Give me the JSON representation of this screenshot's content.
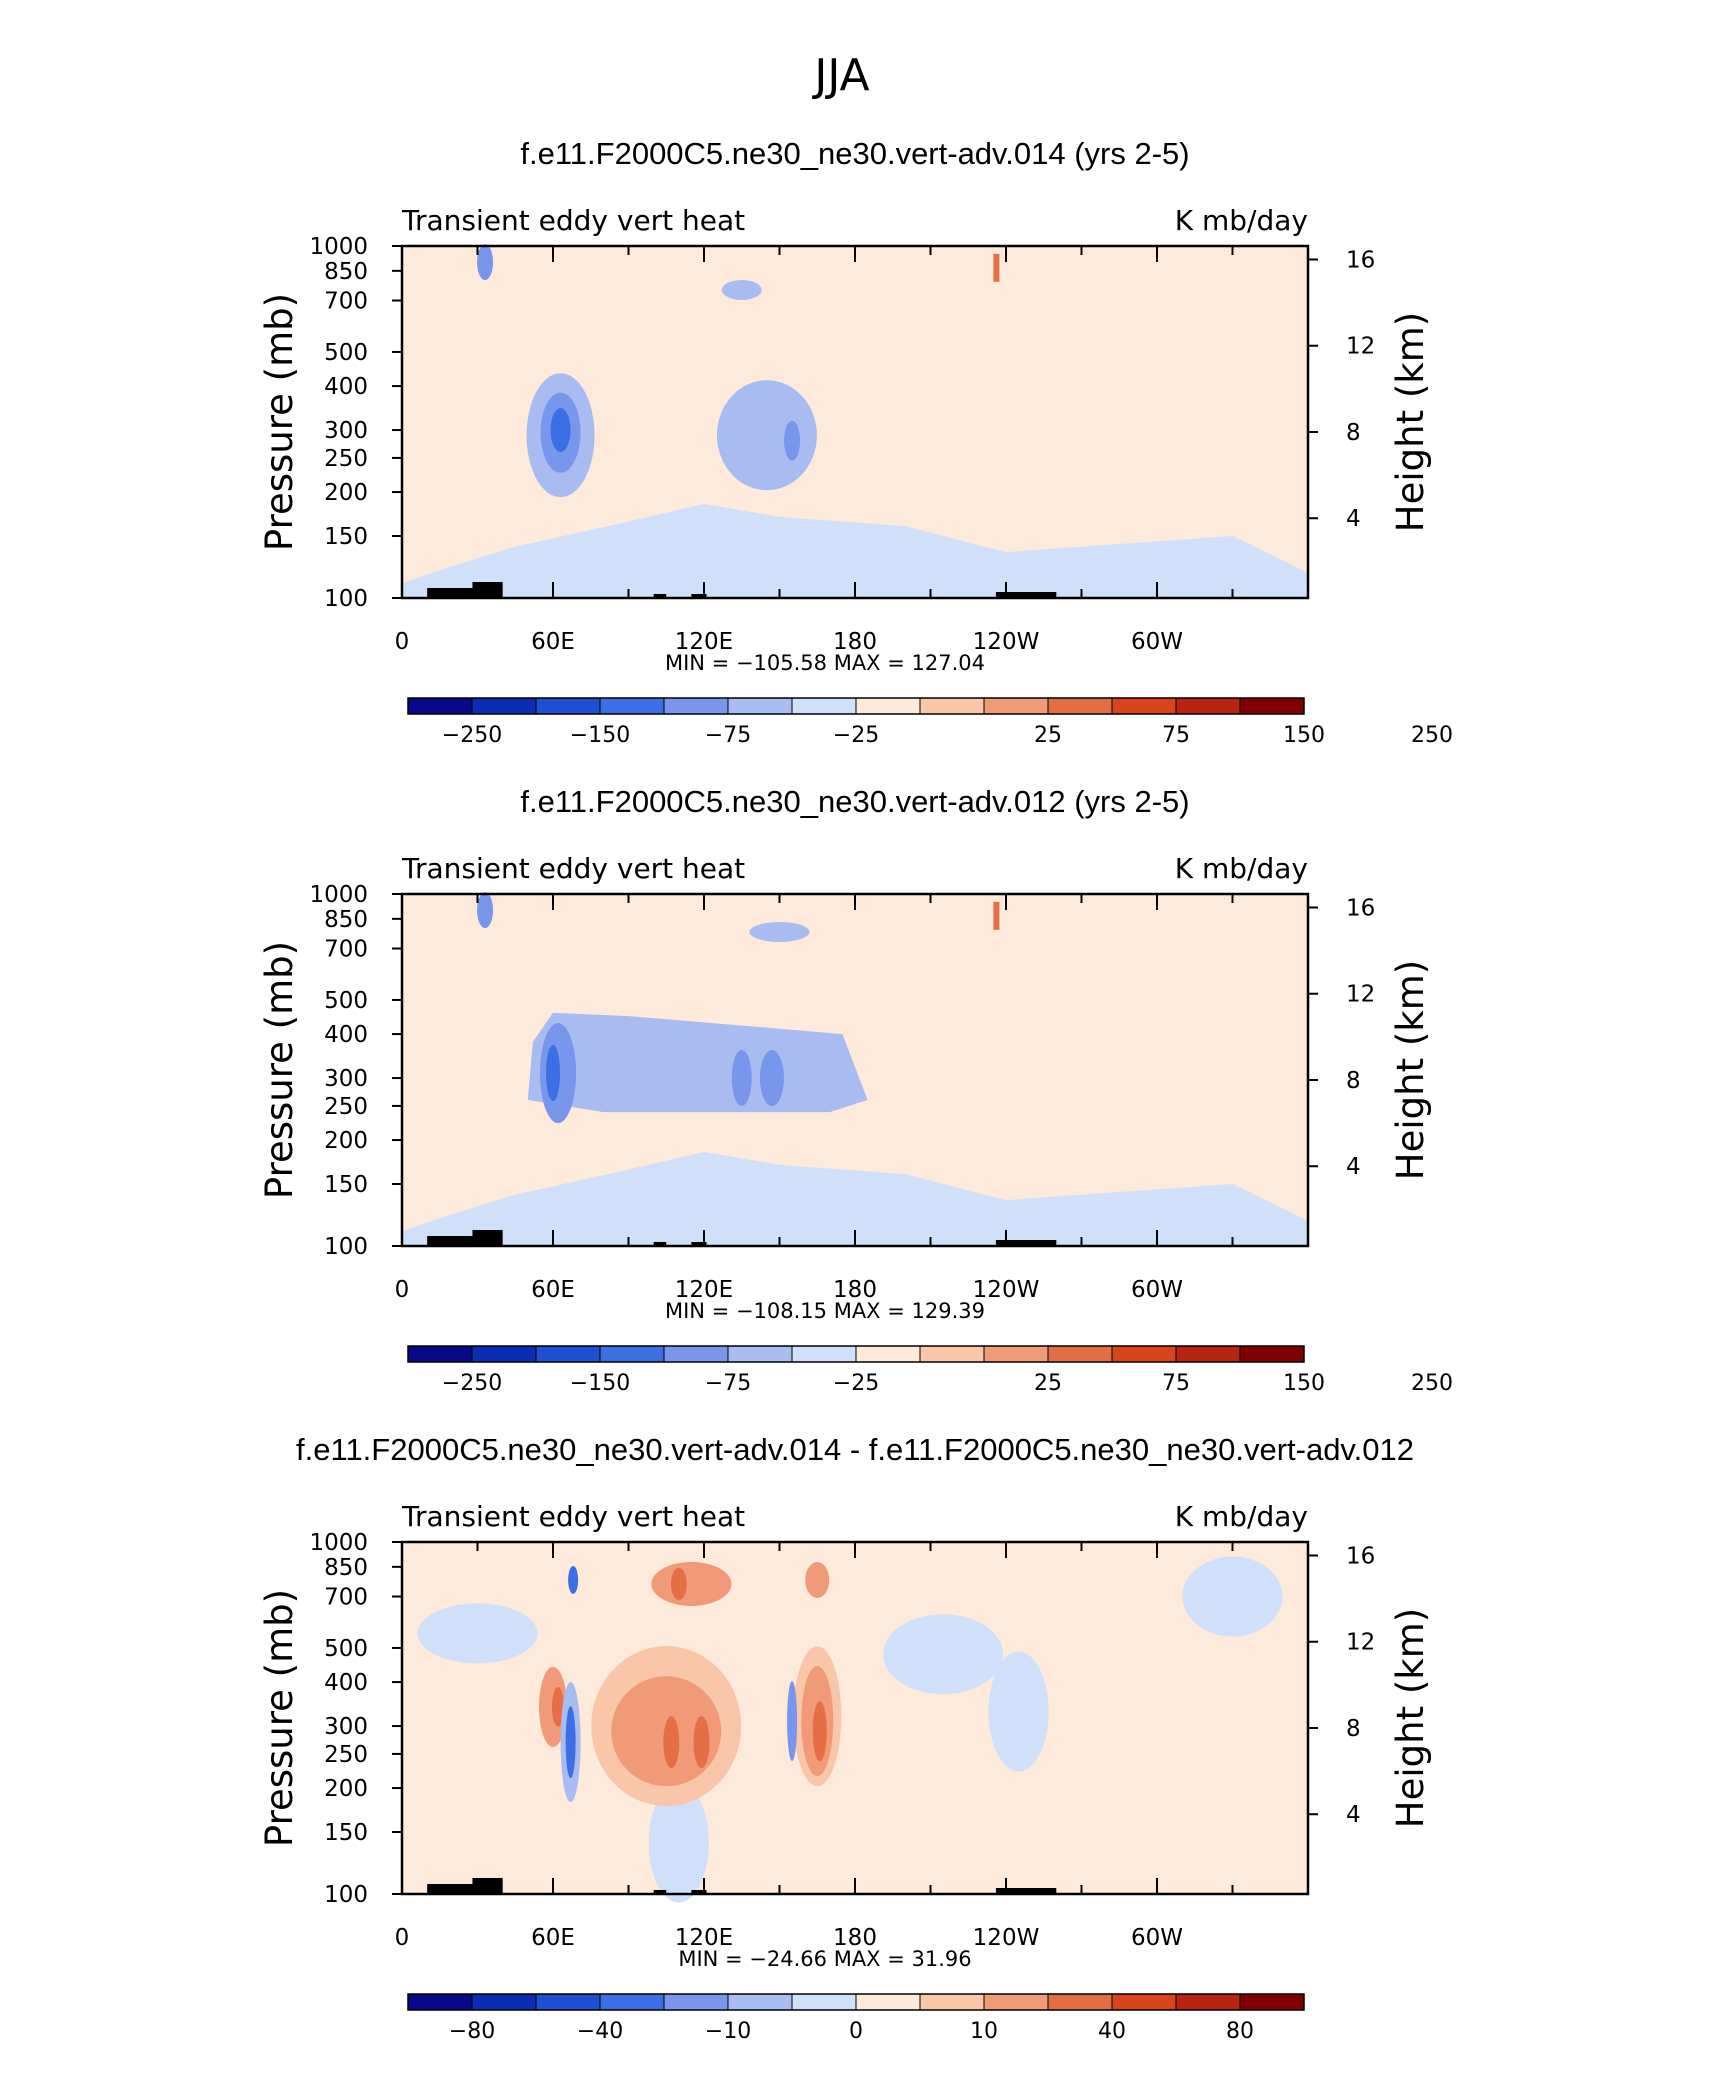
{
  "figure": {
    "title": "JJA"
  },
  "colors": {
    "abs_levels": [
      "#08088c",
      "#0b2cb4",
      "#1e50d6",
      "#3c6ee6",
      "#7896ec",
      "#a8bcf2",
      "#d0e0fa",
      "#fdeadb",
      "#f9c6aa",
      "#f19a78",
      "#e66e46",
      "#d8441c",
      "#b82410",
      "#800000"
    ],
    "diff_levels": [
      "#08088c",
      "#0b2cb4",
      "#1e50d6",
      "#3c6ee6",
      "#7896ec",
      "#a8bcf2",
      "#d0e0fa",
      "#fdeadb",
      "#f9c6aa",
      "#f19a78",
      "#e66e46",
      "#d8441c",
      "#b82410",
      "#800000"
    ]
  },
  "chart_data": [
    {
      "type": "heatmap",
      "title": "f.e11.F2000C5.ne30_ne30.vert-adv.014 (yrs 2-5)",
      "left_string": "Transient eddy vert heat",
      "right_string": "K mb/day",
      "ylabel": "Pressure (mb)",
      "ylabel_right": "Height (km)",
      "x_ticks": [
        "0",
        "60E",
        "120E",
        "180",
        "120W",
        "60W"
      ],
      "y_ticks": [
        "100",
        "150",
        "200",
        "250",
        "300",
        "400",
        "500",
        "700",
        "850",
        "1000"
      ],
      "y2_ticks": [
        "16",
        "12",
        "8",
        "4"
      ],
      "min_max": "MIN = −105.58   MAX = 127.04",
      "colorbar_labels": [
        "−250",
        "−150",
        "−75",
        "−25",
        "25",
        "75",
        "150",
        "250"
      ],
      "ylim": [
        1000,
        100
      ],
      "xlim": [
        0,
        360
      ],
      "features": [
        {
          "lon": 63,
          "p": 300,
          "value": -105.58
        },
        {
          "lon": 155,
          "p": 280,
          "value": -60
        },
        {
          "lon": 236,
          "p": 940,
          "value": 127.04
        }
      ]
    },
    {
      "type": "heatmap",
      "title": "f.e11.F2000C5.ne30_ne30.vert-adv.012 (yrs 2-5)",
      "left_string": "Transient eddy vert heat",
      "right_string": "K mb/day",
      "ylabel": "Pressure (mb)",
      "ylabel_right": "Height (km)",
      "x_ticks": [
        "0",
        "60E",
        "120E",
        "180",
        "120W",
        "60W"
      ],
      "y_ticks": [
        "100",
        "150",
        "200",
        "250",
        "300",
        "400",
        "500",
        "700",
        "850",
        "1000"
      ],
      "y2_ticks": [
        "16",
        "12",
        "8",
        "4"
      ],
      "min_max": "MIN = −108.15   MAX = 129.39",
      "colorbar_labels": [
        "−250",
        "−150",
        "−75",
        "−25",
        "25",
        "75",
        "150",
        "250"
      ],
      "ylim": [
        1000,
        100
      ],
      "xlim": [
        0,
        360
      ],
      "features": [
        {
          "lon": 60,
          "p": 300,
          "value": -108.15
        },
        {
          "lon": 143,
          "p": 290,
          "value": -75
        },
        {
          "lon": 236,
          "p": 940,
          "value": 129.39
        }
      ]
    },
    {
      "type": "heatmap",
      "title": "f.e11.F2000C5.ne30_ne30.vert-adv.014 - f.e11.F2000C5.ne30_ne30.vert-adv.012",
      "left_string": "Transient eddy vert heat",
      "right_string": "K mb/day",
      "ylabel": "Pressure (mb)",
      "ylabel_right": "Height (km)",
      "x_ticks": [
        "0",
        "60E",
        "120E",
        "180",
        "120W",
        "60W"
      ],
      "y_ticks": [
        "100",
        "150",
        "200",
        "250",
        "300",
        "400",
        "500",
        "700",
        "850",
        "1000"
      ],
      "y2_ticks": [
        "16",
        "12",
        "8",
        "4"
      ],
      "min_max": "MIN = −24.66   MAX =   31.96",
      "colorbar_labels": [
        "−80",
        "−40",
        "−10",
        "0",
        "10",
        "40",
        "80"
      ],
      "ylim": [
        1000,
        100
      ],
      "xlim": [
        0,
        360
      ],
      "features": [
        {
          "lon": 67,
          "p": 270,
          "value": -24.66
        },
        {
          "lon": 107,
          "p": 270,
          "value": 31.96
        },
        {
          "lon": 166,
          "p": 290,
          "value": 28
        }
      ]
    }
  ]
}
